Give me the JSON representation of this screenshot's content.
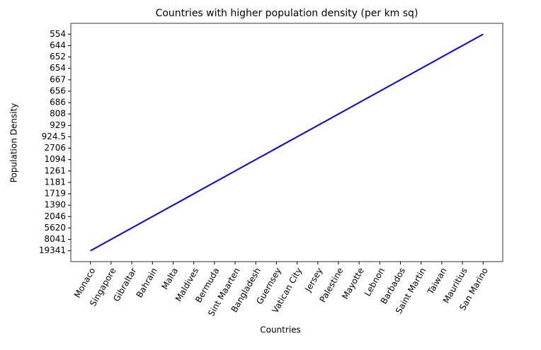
{
  "chart_data": {
    "type": "line",
    "title": "Countries with higher population density (per km sq)",
    "x_label": "Countries",
    "y_label": "Population Density",
    "y_axis": "categorical",
    "categories": [
      "Monaco",
      "Singapore",
      "Gibraltar",
      "Bahrain",
      "Malta",
      "Maldives",
      "Bermuda",
      "Sint Maarten",
      "Bangladesh",
      "Guernsey",
      "Vatican City",
      "Jersey",
      "Palestine",
      "Mayotte",
      "Lebnon",
      "Barbados",
      "Saint Martin",
      "Taiwan",
      "Mauritius",
      "San Marino"
    ],
    "values": [
      19341,
      8041,
      5620,
      2046,
      1390,
      1719,
      1181,
      1261,
      1094,
      2706,
      924.5,
      929,
      808,
      686,
      656,
      667,
      654,
      652,
      644,
      554
    ],
    "color": "#0000ff"
  }
}
